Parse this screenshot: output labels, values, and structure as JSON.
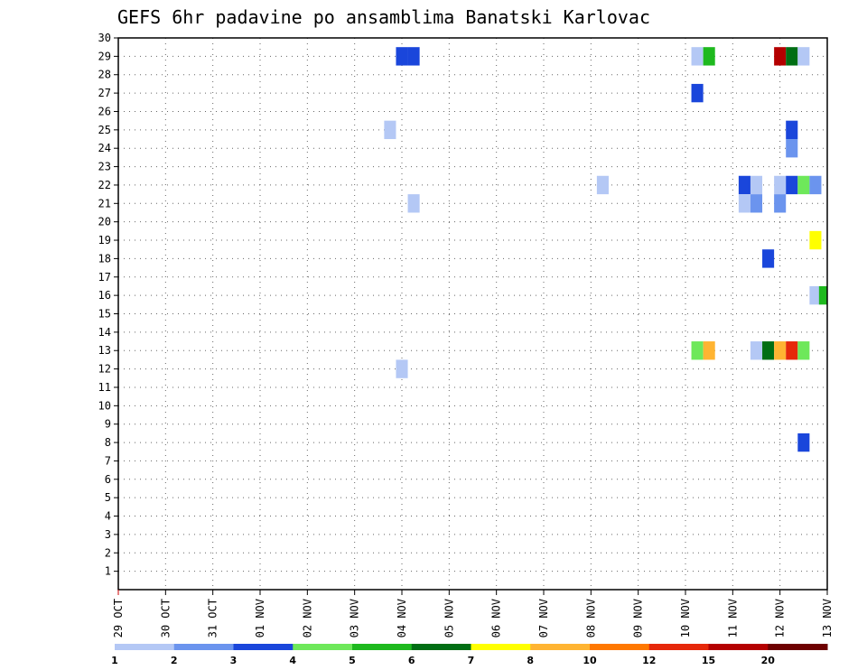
{
  "chart_data": {
    "type": "heatmap",
    "title": "GEFS 6hr padavine po ansamblima Banatski Karlovac",
    "xlabel": "",
    "ylabel": "",
    "x_ticks": [
      "29 OCT",
      "30 OCT",
      "31 OCT",
      "01 NOV",
      "02 NOV",
      "03 NOV",
      "04 NOV",
      "05 NOV",
      "06 NOV",
      "07 NOV",
      "08 NOV",
      "09 NOV",
      "10 NOV",
      "11 NOV",
      "12 NOV",
      "13 NOV"
    ],
    "xlim": [
      0,
      15
    ],
    "ylim": [
      0,
      30
    ],
    "y_ticks": [
      1,
      2,
      3,
      4,
      5,
      6,
      7,
      8,
      9,
      10,
      11,
      12,
      13,
      14,
      15,
      16,
      17,
      18,
      19,
      20,
      21,
      22,
      23,
      24,
      25,
      26,
      27,
      28,
      29,
      30
    ],
    "grid": true,
    "legend": {
      "placement": "bottom",
      "labels": [
        "1",
        "2",
        "3",
        "4",
        "5",
        "6",
        "7",
        "8",
        "10",
        "12",
        "15",
        "20"
      ],
      "colors": [
        "#b4c8f5",
        "#6b94ee",
        "#1a46db",
        "#6ee85a",
        "#1eb91e",
        "#006e14",
        "#ffff00",
        "#ffb432",
        "#ff7800",
        "#e6280a",
        "#b40000",
        "#6e0000"
      ]
    },
    "cells": [
      {
        "t": 6.0,
        "m": 29,
        "c": 2
      },
      {
        "t": 6.25,
        "m": 29,
        "c": 2
      },
      {
        "t": 5.75,
        "m": 25,
        "c": 0
      },
      {
        "t": 6.0,
        "m": 12,
        "c": 0
      },
      {
        "t": 6.25,
        "m": 21,
        "c": 0
      },
      {
        "t": 10.25,
        "m": 22,
        "c": 0
      },
      {
        "t": 12.25,
        "m": 29,
        "c": 0
      },
      {
        "t": 12.5,
        "m": 29,
        "c": 4
      },
      {
        "t": 12.25,
        "m": 27,
        "c": 2
      },
      {
        "t": 12.25,
        "m": 13,
        "c": 3
      },
      {
        "t": 12.5,
        "m": 13,
        "c": 7
      },
      {
        "t": 13.25,
        "m": 22,
        "c": 2
      },
      {
        "t": 13.5,
        "m": 22,
        "c": 0
      },
      {
        "t": 13.25,
        "m": 21,
        "c": 0
      },
      {
        "t": 13.5,
        "m": 21,
        "c": 1
      },
      {
        "t": 13.5,
        "m": 13,
        "c": 0
      },
      {
        "t": 13.75,
        "m": 13,
        "c": 5
      },
      {
        "t": 13.75,
        "m": 18,
        "c": 2
      },
      {
        "t": 14.0,
        "m": 29,
        "c": 10
      },
      {
        "t": 14.25,
        "m": 29,
        "c": 5
      },
      {
        "t": 14.5,
        "m": 29,
        "c": 0
      },
      {
        "t": 14.25,
        "m": 25,
        "c": 2
      },
      {
        "t": 14.25,
        "m": 24,
        "c": 1
      },
      {
        "t": 14.0,
        "m": 22,
        "c": 0
      },
      {
        "t": 14.25,
        "m": 22,
        "c": 2
      },
      {
        "t": 14.5,
        "m": 22,
        "c": 3
      },
      {
        "t": 14.75,
        "m": 22,
        "c": 1
      },
      {
        "t": 14.0,
        "m": 21,
        "c": 1
      },
      {
        "t": 14.75,
        "m": 19,
        "c": 6
      },
      {
        "t": 14.75,
        "m": 16,
        "c": 0
      },
      {
        "t": 14.95,
        "m": 16,
        "c": 4
      },
      {
        "t": 14.0,
        "m": 13,
        "c": 7
      },
      {
        "t": 14.25,
        "m": 13,
        "c": 9
      },
      {
        "t": 14.5,
        "m": 13,
        "c": 3
      },
      {
        "t": 14.5,
        "m": 8,
        "c": 2
      }
    ]
  }
}
